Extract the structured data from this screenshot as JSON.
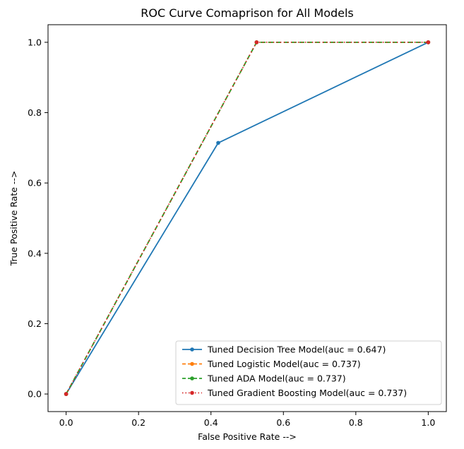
{
  "chart_data": {
    "type": "line",
    "title": "ROC Curve Comaprison for All Models",
    "xlabel": "False Positive Rate -->",
    "ylabel": "True Positive Rate -->",
    "xlim": [
      -0.05,
      1.05
    ],
    "ylim": [
      -0.05,
      1.05
    ],
    "xticks": [
      0.0,
      0.2,
      0.4,
      0.6,
      0.8,
      1.0
    ],
    "yticks": [
      0.0,
      0.2,
      0.4,
      0.6,
      0.8,
      1.0
    ],
    "xtick_labels": [
      "0.0",
      "0.2",
      "0.4",
      "0.6",
      "0.8",
      "1.0"
    ],
    "ytick_labels": [
      "0.0",
      "0.2",
      "0.4",
      "0.6",
      "0.8",
      "1.0"
    ],
    "grid": false,
    "legend_position": "lower-right",
    "series": [
      {
        "name": "Tuned Decision Tree Model(auc = 0.647)",
        "color": "#1f77b4",
        "style": "solid",
        "marker": "circle",
        "x": [
          0.0,
          0.42,
          1.0
        ],
        "y": [
          0.0,
          0.714,
          1.0
        ]
      },
      {
        "name": "Tuned Logistic Model(auc = 0.737)",
        "color": "#ff7f0e",
        "style": "dashed",
        "marker": "circle",
        "x": [
          0.0,
          0.526,
          1.0
        ],
        "y": [
          0.0,
          1.0,
          1.0
        ]
      },
      {
        "name": "Tuned ADA Model(auc = 0.737)",
        "color": "#2ca02c",
        "style": "dashed",
        "marker": "circle",
        "x": [
          0.0,
          0.526,
          1.0
        ],
        "y": [
          0.0,
          1.0,
          1.0
        ]
      },
      {
        "name": "Tuned Gradient Boosting Model(auc = 0.737)",
        "color": "#d62728",
        "style": "dotted",
        "marker": "circle",
        "x": [
          0.0,
          0.526,
          1.0
        ],
        "y": [
          0.0,
          1.0,
          1.0
        ]
      }
    ]
  }
}
